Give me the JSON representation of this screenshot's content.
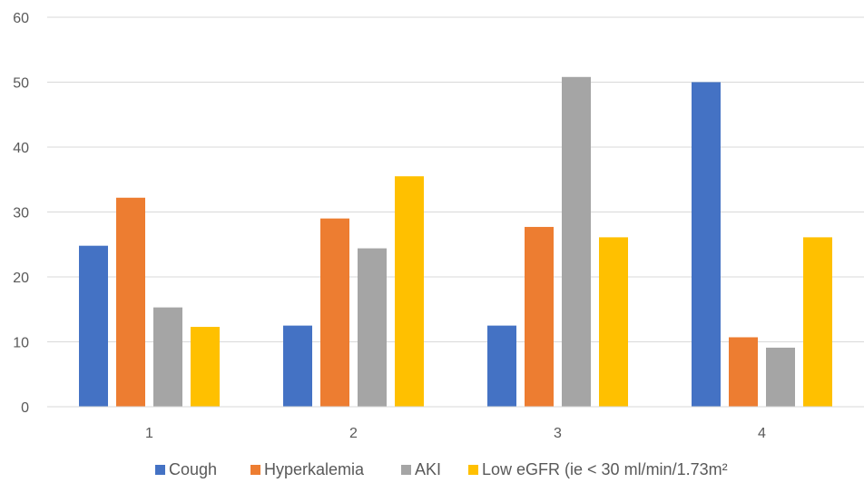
{
  "chart_data": {
    "type": "bar",
    "categories": [
      "1",
      "2",
      "3",
      "4"
    ],
    "series": [
      {
        "name": "Cough",
        "values": [
          24.8,
          12.5,
          12.5,
          50.0
        ],
        "color": "#4472C4"
      },
      {
        "name": "Hyperkalemia",
        "values": [
          32.2,
          29.0,
          27.7,
          10.7
        ],
        "color": "#ED7D31"
      },
      {
        "name": "AKI",
        "values": [
          15.3,
          24.4,
          50.8,
          9.1
        ],
        "color": "#A5A5A5"
      },
      {
        "name": "Low eGFR (ie < 30 ml/min/1.73m²",
        "values": [
          12.3,
          35.5,
          26.1,
          26.1
        ],
        "color": "#FFC000"
      }
    ],
    "yticks": [
      "0",
      "10",
      "20",
      "30",
      "40",
      "50",
      "60"
    ],
    "ylim": [
      0,
      60
    ],
    "grid": true,
    "legend_position": "bottom"
  }
}
